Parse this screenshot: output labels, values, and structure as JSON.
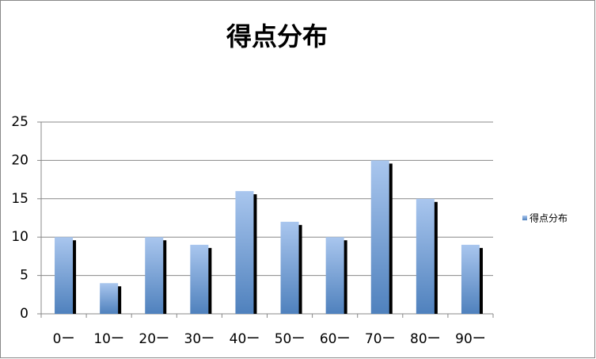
{
  "chart_data": {
    "type": "bar",
    "title": "得点分布",
    "categories": [
      "0ー",
      "10ー",
      "20ー",
      "30ー",
      "40ー",
      "50ー",
      "60ー",
      "70ー",
      "80ー",
      "90ー"
    ],
    "series": [
      {
        "name": "得点分布",
        "color": "#4f81bd",
        "values": [
          10,
          4,
          10,
          9,
          16,
          12,
          10,
          20,
          15,
          9
        ]
      }
    ],
    "ylim": [
      0,
      25
    ],
    "yticks": [
      0,
      5,
      10,
      15,
      20,
      25
    ],
    "grid": true,
    "legend": "right"
  }
}
